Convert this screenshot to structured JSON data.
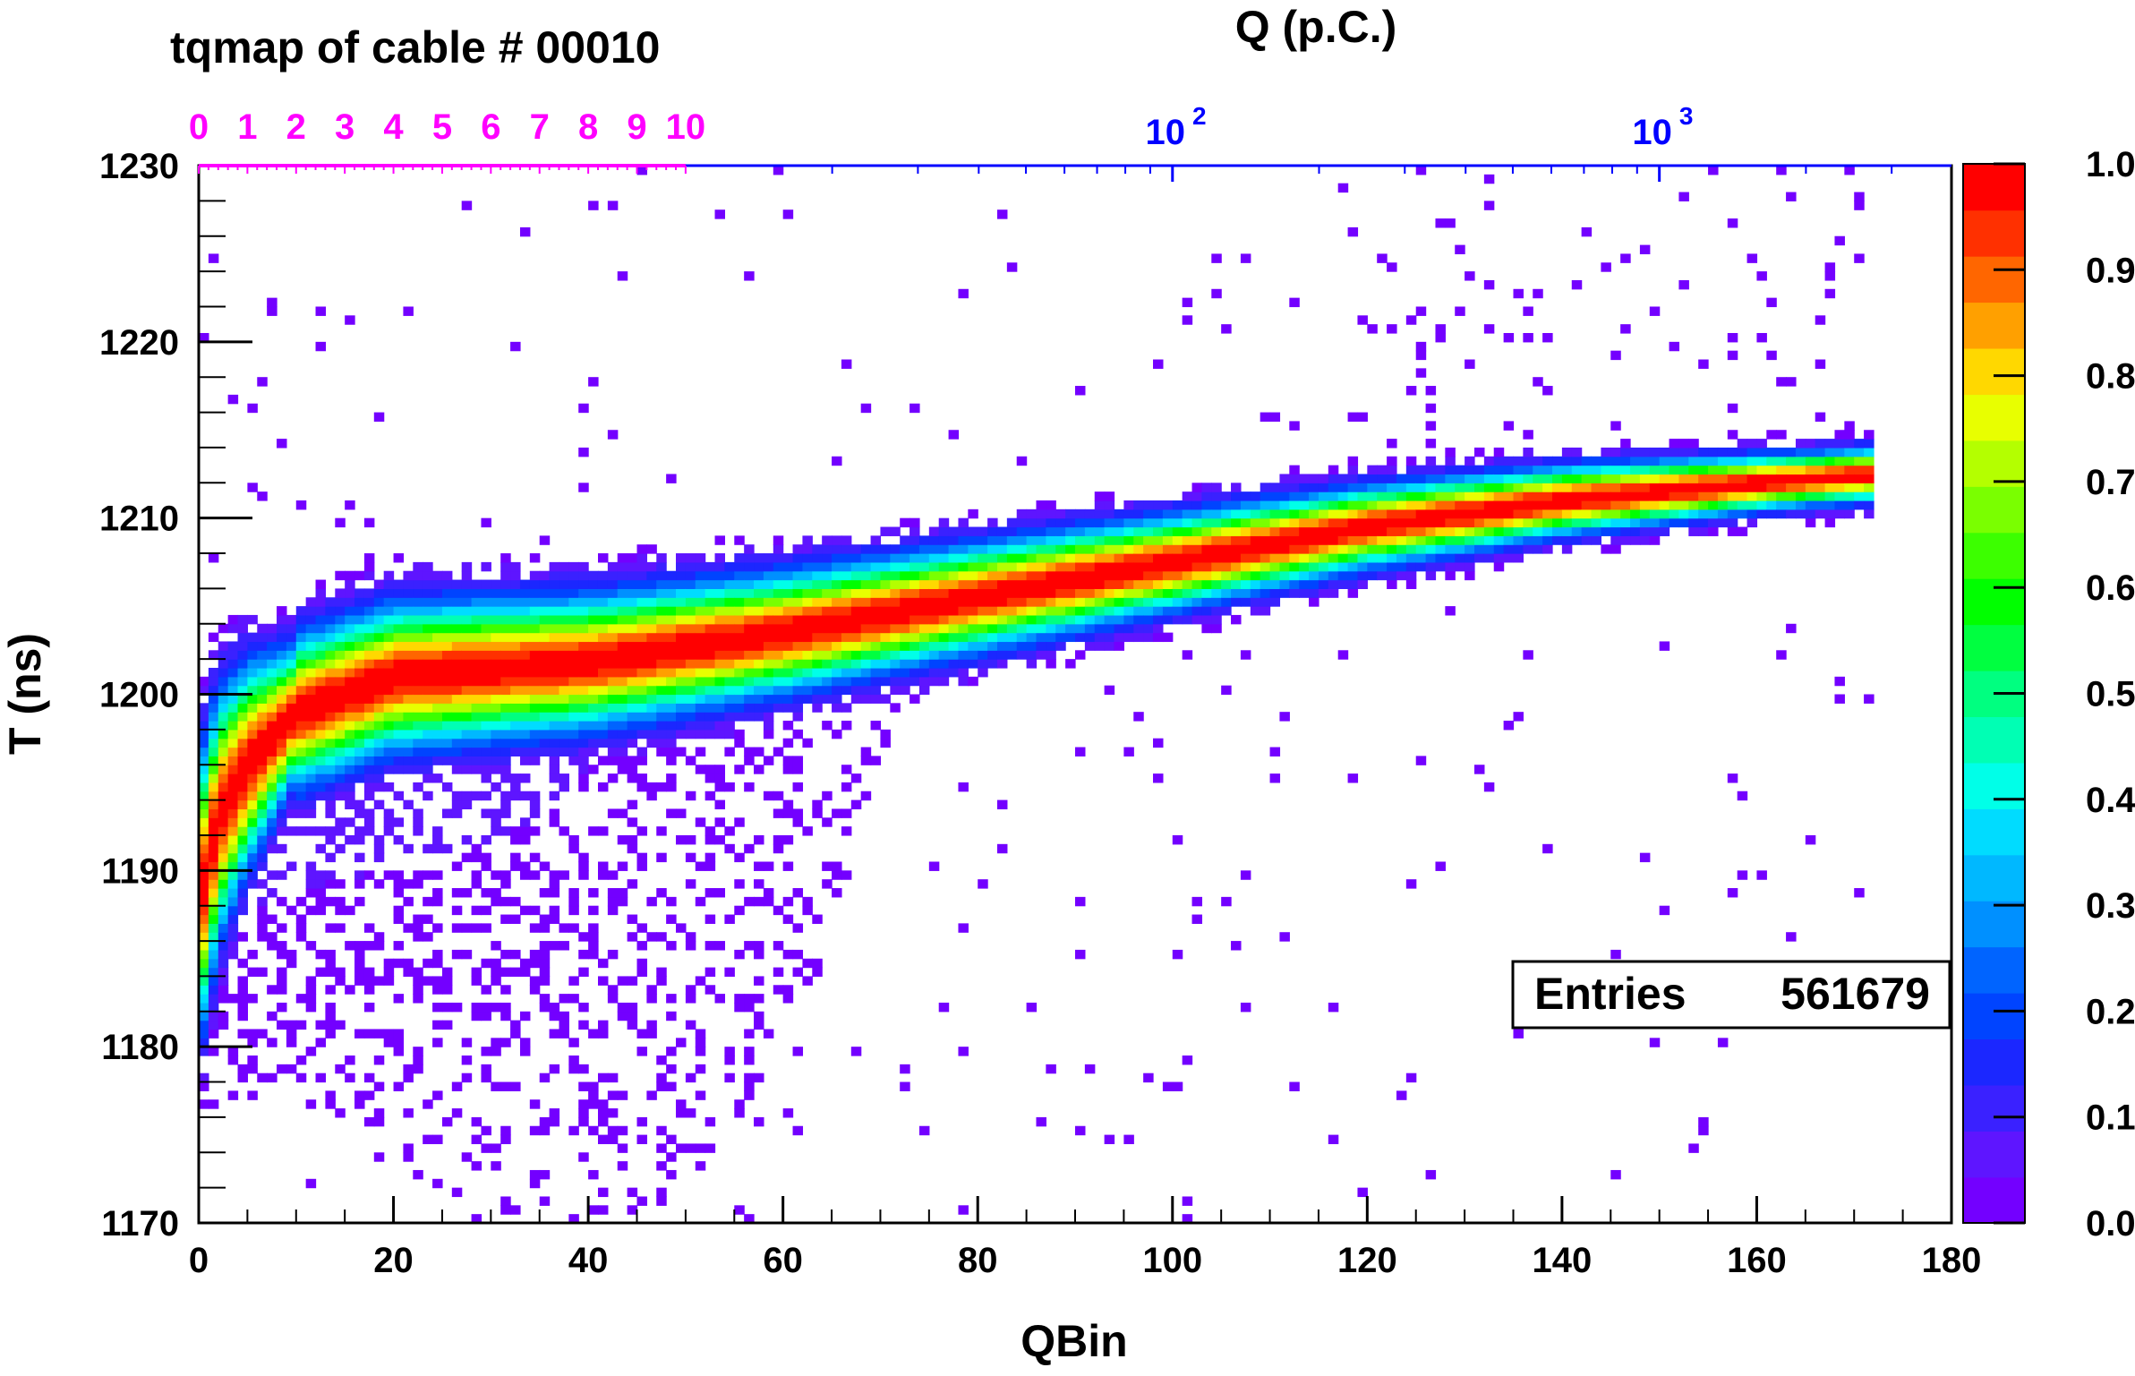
{
  "chart_data": {
    "type": "heatmap",
    "title": "tqmap of cable # 00010",
    "xlabel": "QBin",
    "ylabel": "T (ns)",
    "xlim": [
      0,
      180
    ],
    "ylim": [
      1170,
      1230
    ],
    "x_ticks": [
      "0",
      "20",
      "40",
      "60",
      "80",
      "100",
      "120",
      "140",
      "160",
      "180"
    ],
    "y_ticks": [
      "1170",
      "1180",
      "1190",
      "1200",
      "1210",
      "1220",
      "1230"
    ],
    "top_axis": {
      "label": "Q (p.C.)",
      "linear_ticks": [
        "0",
        "1",
        "2",
        "3",
        "4",
        "5",
        "6",
        "7",
        "8",
        "9",
        "10"
      ],
      "linear_color": "#ff00ff",
      "log_ticks": [
        {
          "base": "10",
          "exp": "2",
          "qbin": 100
        },
        {
          "base": "10",
          "exp": "3",
          "qbin": 150
        }
      ],
      "log_color": "#0000ff"
    },
    "colorbar": {
      "min": 0.0,
      "max": 1.0,
      "ticks": [
        "0.0",
        "0.1",
        "0.2",
        "0.3",
        "0.4",
        "0.5",
        "0.6",
        "0.7",
        "0.8",
        "0.9",
        "1.0"
      ],
      "palette": [
        "#7300ff",
        "#5e15ff",
        "#3a21ff",
        "#1b27ff",
        "#0044ff",
        "#0064ff",
        "#0090ff",
        "#00b8ff",
        "#00dcff",
        "#00ffe8",
        "#00ffb4",
        "#00ff80",
        "#00ff40",
        "#00ff00",
        "#3cff00",
        "#7aff00",
        "#b4ff00",
        "#e8ff00",
        "#ffd800",
        "#ffa000",
        "#ff6600",
        "#ff3000",
        "#ff0000"
      ]
    },
    "ridge": {
      "description_points": [
        {
          "qbin": 0,
          "t": 1188
        },
        {
          "qbin": 2,
          "t": 1193
        },
        {
          "qbin": 5,
          "t": 1196
        },
        {
          "qbin": 10,
          "t": 1199
        },
        {
          "qbin": 20,
          "t": 1201
        },
        {
          "qbin": 40,
          "t": 1201.8
        },
        {
          "qbin": 60,
          "t": 1203.5
        },
        {
          "qbin": 80,
          "t": 1205.5
        },
        {
          "qbin": 100,
          "t": 1207.5
        },
        {
          "qbin": 120,
          "t": 1209.5
        },
        {
          "qbin": 140,
          "t": 1211
        },
        {
          "qbin": 160,
          "t": 1212
        },
        {
          "qbin": 172,
          "t": 1212.5
        }
      ],
      "max_qbin": 172
    },
    "stats_box": {
      "label": "Entries",
      "value": "561679"
    }
  }
}
